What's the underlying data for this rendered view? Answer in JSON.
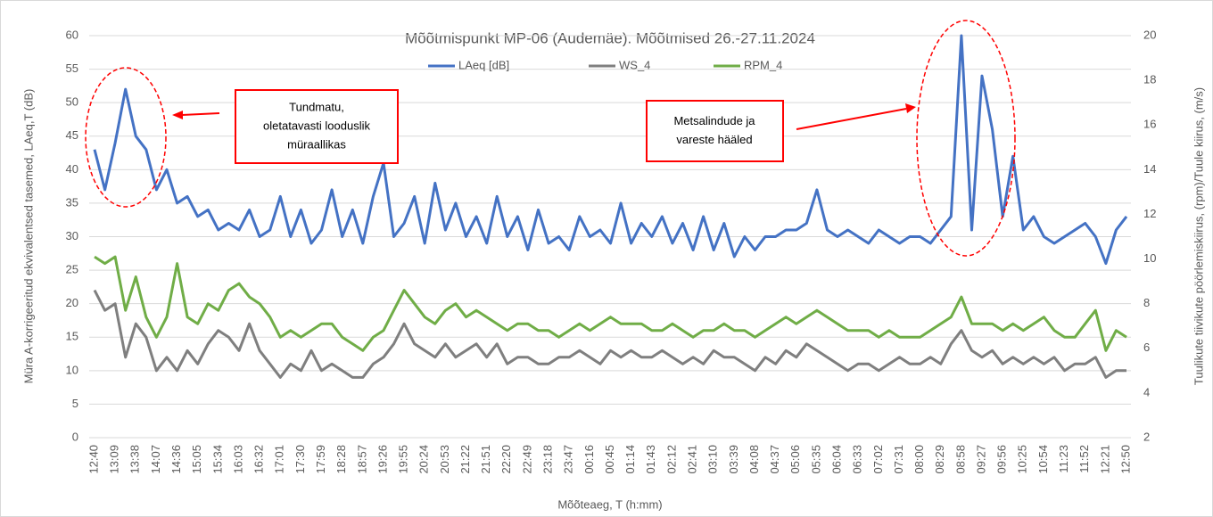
{
  "chart_data": {
    "type": "line",
    "title": "Mõõtmispunkt MP-06 (Audemäe). Mõõtmised 26.-27.11.2024",
    "x_label": "Mõõteaeg, T (h:mm)",
    "y_label": "Müra A-korrigeeritud ekvivalentsed tasemed, LAeq,T (dB)",
    "y2_label": "Tuulikute tiivikute pöörlemiskiirus, (rpm)/Tuule kiirus, (m/s)",
    "categories": [
      "12:40",
      null,
      "13:09",
      null,
      "13:38",
      null,
      "14:07",
      null,
      "14:36",
      null,
      "15:05",
      null,
      "15:34",
      null,
      "16:03",
      null,
      "16:32",
      null,
      "17:01",
      null,
      "17:30",
      null,
      "17:59",
      null,
      "18:28",
      null,
      "18:57",
      null,
      "19:26",
      null,
      "19:55",
      null,
      "20:24",
      null,
      "20:53",
      null,
      "21:22",
      null,
      "21:51",
      null,
      "22:20",
      null,
      "22:49",
      null,
      "23:18",
      null,
      "23:47",
      null,
      "00:16",
      null,
      "00:45",
      null,
      "01:14",
      null,
      "01:43",
      null,
      "02:12",
      null,
      "02:41",
      null,
      "03:10",
      null,
      "03:39",
      null,
      "04:08",
      null,
      "04:37",
      null,
      "05:06",
      null,
      "05:35",
      null,
      "06:04",
      null,
      "06:33",
      null,
      "07:02",
      null,
      "07:31",
      null,
      "08:00",
      null,
      "08:29",
      null,
      "08:58",
      null,
      "09:27",
      null,
      "09:56",
      null,
      "10:25",
      null,
      "10:54",
      null,
      "11:23",
      null,
      "11:52",
      null,
      "12:21",
      null,
      "12:50"
    ],
    "series": [
      {
        "name": "LAeq [dB]",
        "color": "#4472c4",
        "axis": "y",
        "values": [
          43,
          37,
          44,
          52,
          45,
          43,
          37,
          40,
          35,
          36,
          33,
          34,
          31,
          32,
          31,
          34,
          30,
          31,
          36,
          30,
          34,
          29,
          31,
          37,
          30,
          34,
          29,
          36,
          41,
          30,
          32,
          36,
          29,
          38,
          31,
          35,
          30,
          33,
          29,
          36,
          30,
          33,
          28,
          34,
          29,
          30,
          28,
          33,
          30,
          31,
          29,
          35,
          29,
          32,
          30,
          33,
          29,
          32,
          28,
          33,
          28,
          32,
          27,
          30,
          28,
          30,
          30,
          31,
          31,
          32,
          37,
          31,
          30,
          31,
          30,
          29,
          31,
          30,
          29,
          30,
          30,
          29,
          31,
          33,
          60,
          31,
          54,
          46,
          33,
          42,
          31,
          33,
          30,
          29,
          30,
          31,
          32,
          30,
          26,
          31,
          33
        ]
      },
      {
        "name": "WS_4",
        "color": "#7f7f7f",
        "axis": "y2",
        "values": [
          8.6,
          7.7,
          8,
          5.6,
          7.1,
          6.5,
          5,
          5.6,
          5,
          5.9,
          5.3,
          6.2,
          6.8,
          6.5,
          5.9,
          7.1,
          5.9,
          5.3,
          4.7,
          5.3,
          5,
          5.9,
          5,
          5.3,
          5,
          4.7,
          4.7,
          5.3,
          5.6,
          6.2,
          7.1,
          6.2,
          5.9,
          5.6,
          6.2,
          5.6,
          5.9,
          6.2,
          5.6,
          6.2,
          5.3,
          5.6,
          5.6,
          5.3,
          5.3,
          5.6,
          5.6,
          5.9,
          5.6,
          5.3,
          5.9,
          5.6,
          5.9,
          5.6,
          5.6,
          5.9,
          5.6,
          5.3,
          5.6,
          5.3,
          5.9,
          5.6,
          5.6,
          5.3,
          5,
          5.6,
          5.3,
          5.9,
          5.6,
          6.2,
          5.9,
          5.6,
          5.3,
          5,
          5.3,
          5.3,
          5,
          5.3,
          5.6,
          5.3,
          5.3,
          5.6,
          5.3,
          6.2,
          6.8,
          5.9,
          5.6,
          5.9,
          5.3,
          5.6,
          5.3,
          5.6,
          5.3,
          5.6,
          5,
          5.3,
          5.3,
          5.6,
          4.7,
          5,
          5
        ]
      },
      {
        "name": "RPM_4",
        "color": "#70ad47",
        "axis": "y2",
        "values": [
          10.1,
          9.8,
          10.1,
          7.7,
          9.2,
          7.4,
          6.5,
          7.4,
          9.8,
          7.4,
          7.1,
          8,
          7.7,
          8.6,
          8.9,
          8.3,
          8,
          7.4,
          6.5,
          6.8,
          6.5,
          6.8,
          7.1,
          7.1,
          6.5,
          6.2,
          5.9,
          6.5,
          6.8,
          7.7,
          8.6,
          8,
          7.4,
          7.1,
          7.7,
          8,
          7.4,
          7.7,
          7.4,
          7.1,
          6.8,
          7.1,
          7.1,
          6.8,
          6.8,
          6.5,
          6.8,
          7.1,
          6.8,
          7.1,
          7.4,
          7.1,
          7.1,
          7.1,
          6.8,
          6.8,
          7.1,
          6.8,
          6.5,
          6.8,
          6.8,
          7.1,
          6.8,
          6.8,
          6.5,
          6.8,
          7.1,
          7.4,
          7.1,
          7.4,
          7.7,
          7.4,
          7.1,
          6.8,
          6.8,
          6.8,
          6.5,
          6.8,
          6.5,
          6.5,
          6.5,
          6.8,
          7.1,
          7.4,
          8.3,
          7.1,
          7.1,
          7.1,
          6.8,
          7.1,
          6.8,
          7.1,
          7.4,
          6.8,
          6.5,
          6.5,
          7.1,
          7.7,
          5.9,
          6.8,
          6.5
        ]
      }
    ],
    "ylim": [
      0,
      60
    ],
    "yticks": [
      0,
      5,
      10,
      15,
      20,
      25,
      30,
      35,
      40,
      45,
      50,
      55,
      60
    ],
    "y2lim": [
      2,
      20
    ],
    "y2ticks": [
      2,
      4,
      6,
      8,
      10,
      12,
      14,
      16,
      18,
      20
    ],
    "grid": true,
    "legend": "top",
    "annotations": [
      {
        "lines": [
          "Tundmatu,",
          "oletatavasti looduslik",
          "müraallikas"
        ],
        "color": "#ff0000"
      },
      {
        "lines": [
          "Metsalindude ja",
          "vareste hääled"
        ],
        "color": "#ff0000"
      }
    ]
  }
}
